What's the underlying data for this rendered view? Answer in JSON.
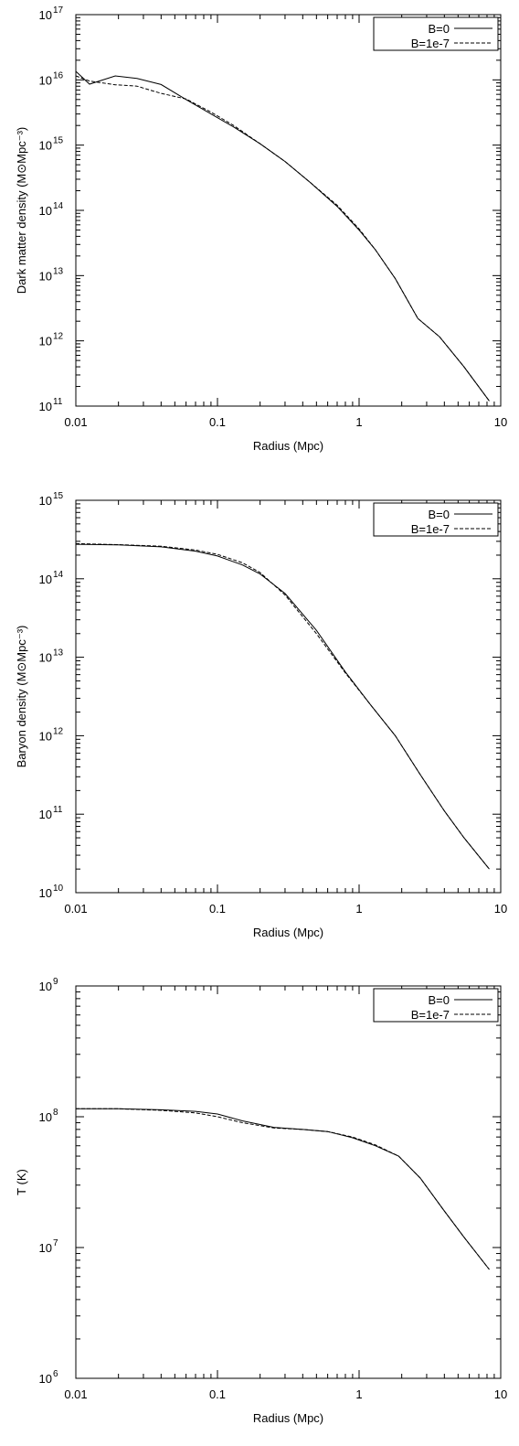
{
  "chart_data": [
    {
      "type": "line",
      "xlabel": "Radius (Mpc)",
      "ylabel": "Dark matter density (M⊙Mpc⁻³)",
      "xscale": "log",
      "yscale": "log",
      "xlim": [
        0.01,
        10
      ],
      "ylim": [
        100000000000.0,
        1e+17
      ],
      "xtick_labels": [
        "0.01",
        "0.1",
        "1",
        "10"
      ],
      "ytick_exponents": [
        "11",
        "12",
        "13",
        "14",
        "15",
        "16",
        "17"
      ],
      "ytick_base": "10",
      "legend": "top-right",
      "grid": false,
      "series": [
        {
          "name": "B=0",
          "style": "solid",
          "x": [
            0.01,
            0.0125,
            0.019,
            0.027,
            0.04,
            0.06,
            0.09,
            0.13,
            0.2,
            0.3,
            0.45,
            0.7,
            1.0,
            1.3,
            1.8,
            2.6,
            3.7,
            5.5,
            8.3
          ],
          "y": [
            1.35e+16,
            8600000000000000.0,
            1.15e+16,
            1.05e+16,
            8500000000000000.0,
            5000000000000000.0,
            3000000000000000.0,
            1900000000000000.0,
            1050000000000000.0,
            560000000000000.0,
            270000000000000.0,
            115000000000000.0,
            50000000000000.0,
            25000000000000.0,
            9000000000000.0,
            2200000000000.0,
            1150000000000.0,
            400000000000.0,
            120000000000.0
          ]
        },
        {
          "name": "B=1e-7",
          "style": "dashed",
          "x": [
            0.01,
            0.0125,
            0.019,
            0.027,
            0.04,
            0.06,
            0.09,
            0.13,
            0.2,
            0.3,
            0.45,
            0.7,
            1.0,
            1.3,
            1.8,
            2.6,
            3.7,
            5.5,
            8.3
          ],
          "y": [
            1.15e+16,
            9600000000000000.0,
            8400000000000000.0,
            8000000000000000.0,
            6200000000000000.0,
            5100000000000000.0,
            3200000000000000.0,
            2000000000000000.0,
            1050000000000000.0,
            560000000000000.0,
            270000000000000.0,
            120000000000000.0,
            52000000000000.0,
            25000000000000.0,
            9000000000000.0,
            2200000000000.0,
            1150000000000.0,
            400000000000.0,
            120000000000.0
          ]
        }
      ]
    },
    {
      "type": "line",
      "xlabel": "Radius (Mpc)",
      "ylabel": "Baryon density (M⊙Mpc⁻³)",
      "xscale": "log",
      "yscale": "log",
      "xlim": [
        0.01,
        10
      ],
      "ylim": [
        10000000000.0,
        1000000000000000.0
      ],
      "xtick_labels": [
        "0.01",
        "0.1",
        "1",
        "10"
      ],
      "ytick_exponents": [
        "10",
        "11",
        "12",
        "13",
        "14",
        "15"
      ],
      "ytick_base": "10",
      "legend": "top-right",
      "grid": false,
      "series": [
        {
          "name": "B=0",
          "style": "solid",
          "x": [
            0.01,
            0.02,
            0.04,
            0.07,
            0.1,
            0.15,
            0.2,
            0.3,
            0.5,
            0.8,
            1.2,
            1.8,
            2.7,
            4.0,
            5.5,
            8.3
          ],
          "y": [
            275000000000000.0,
            270000000000000.0,
            255000000000000.0,
            225000000000000.0,
            195000000000000.0,
            150000000000000.0,
            115000000000000.0,
            65000000000000.0,
            22000000000000.0,
            6500000000000.0,
            2500000000000.0,
            1000000000000.0,
            320000000000.0,
            110000000000.0,
            50000000000.0,
            20000000000.0
          ]
        },
        {
          "name": "B=1e-7",
          "style": "dashed",
          "x": [
            0.01,
            0.02,
            0.04,
            0.07,
            0.1,
            0.15,
            0.2,
            0.3,
            0.5,
            0.8,
            1.2,
            1.8,
            2.7,
            4.0,
            5.5,
            8.3
          ],
          "y": [
            280000000000000.0,
            272000000000000.0,
            260000000000000.0,
            232000000000000.0,
            205000000000000.0,
            160000000000000.0,
            120000000000000.0,
            62000000000000.0,
            20000000000000.0,
            6300000000000.0,
            2500000000000.0,
            1000000000000.0,
            320000000000.0,
            110000000000.0,
            50000000000.0,
            20000000000.0
          ]
        }
      ]
    },
    {
      "type": "line",
      "xlabel": "Radius (Mpc)",
      "ylabel": "T (K)",
      "xscale": "log",
      "yscale": "log",
      "xlim": [
        0.01,
        10
      ],
      "ylim": [
        1000000.0,
        1000000000.0
      ],
      "xtick_labels": [
        "0.01",
        "0.1",
        "1",
        "10"
      ],
      "ytick_exponents": [
        "6",
        "7",
        "8",
        "9"
      ],
      "ytick_base": "10",
      "legend": "top-right",
      "grid": false,
      "series": [
        {
          "name": "B=0",
          "style": "solid",
          "x": [
            0.01,
            0.02,
            0.04,
            0.07,
            0.1,
            0.15,
            0.25,
            0.4,
            0.6,
            0.9,
            1.3,
            1.9,
            2.7,
            4.0,
            5.5,
            8.3
          ],
          "y": [
            115000000.0,
            115000000.0,
            113000000.0,
            110000000.0,
            105000000.0,
            93000000.0,
            83000000.0,
            80000000.0,
            77000000.0,
            69000000.0,
            60000000.0,
            50000000.0,
            34000000.0,
            19000000.0,
            12000000.0,
            6800000.0
          ]
        },
        {
          "name": "B=1e-7",
          "style": "dashed",
          "x": [
            0.01,
            0.02,
            0.04,
            0.07,
            0.1,
            0.15,
            0.25,
            0.4,
            0.6,
            0.9,
            1.3,
            1.9,
            2.7,
            4.0,
            5.5,
            8.3
          ],
          "y": [
            115000000.0,
            115000000.0,
            112000000.0,
            107000000.0,
            100000000.0,
            90000000.0,
            82000000.0,
            80000000.0,
            77000000.0,
            70000000.0,
            61000000.0,
            50000000.0,
            34000000.0,
            19000000.0,
            12000000.0,
            6800000.0
          ]
        }
      ]
    }
  ]
}
